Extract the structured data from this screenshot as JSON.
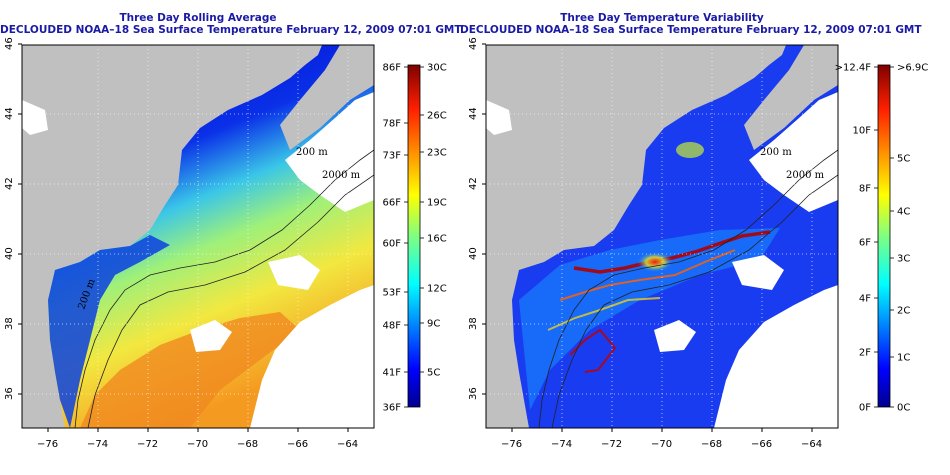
{
  "left_panel": {
    "title_line1": "Three Day Rolling Average",
    "title_line2": "DECLOUDED NOAA–18 Sea Surface Temperature February 12, 2009 07:01 GMT",
    "lat_ticks": [
      "46",
      "44",
      "42",
      "40",
      "38",
      "36"
    ],
    "lon_ticks": [
      "−76",
      "−74",
      "−72",
      "−70",
      "−68",
      "−66",
      "−64"
    ],
    "contour_labels": [
      "200 m",
      "2000 m",
      "200 m"
    ],
    "colorbar": {
      "left_labels": [
        "86F",
        "78F",
        "73F",
        "66F",
        "60F",
        "53F",
        "48F",
        "41F",
        "36F"
      ],
      "right_labels": [
        "30C",
        "26C",
        "23C",
        "19C",
        "16C",
        "12C",
        "9C",
        "5C"
      ]
    }
  },
  "right_panel": {
    "title_line1": "Three Day Temperature Variability",
    "title_line2": "DECLOUDED NOAA–18 Sea Surface Temperature February 12, 2009 07:01 GMT",
    "lat_ticks": [
      "46",
      "44",
      "42",
      "40",
      "38",
      "36"
    ],
    "lon_ticks": [
      "−76",
      "−74",
      "−72",
      "−70",
      "−68",
      "−66",
      "−64"
    ],
    "contour_labels": [
      "200 m",
      "2000 m"
    ],
    "colorbar": {
      "left_labels": [
        ">12.4F",
        "10F",
        "8F",
        "6F",
        "4F",
        "2F",
        "0F"
      ],
      "right_labels": [
        ">6.9C",
        "5C",
        "4C",
        "3C",
        "2C",
        "1C",
        "0C"
      ]
    }
  },
  "colors": {
    "title": "#1a1aa6",
    "land": "#c0c0c0",
    "no_data": "#ffffff",
    "jet": [
      "#00008f",
      "#0000ff",
      "#0080ff",
      "#00ffff",
      "#80ff80",
      "#ffff00",
      "#ff8000",
      "#ff0000",
      "#800000"
    ]
  }
}
